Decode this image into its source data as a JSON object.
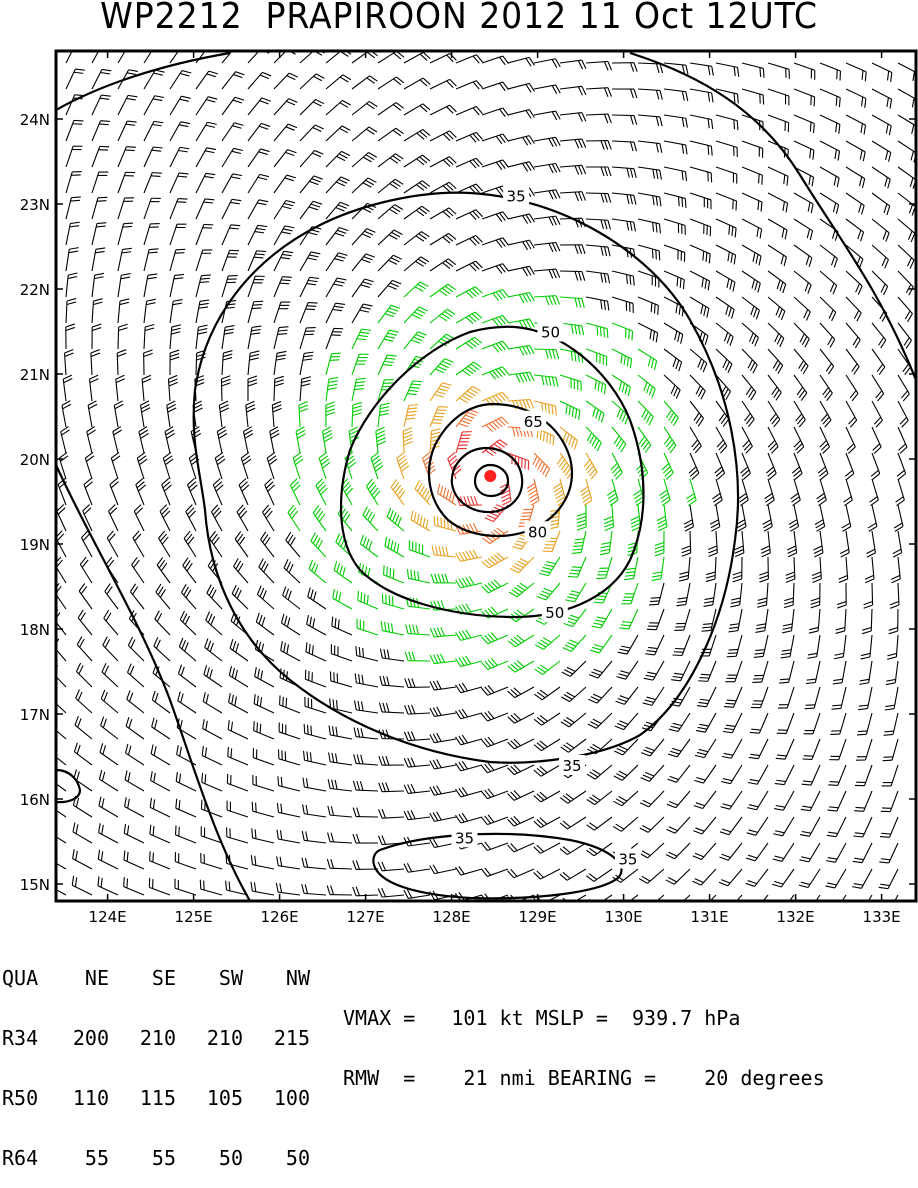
{
  "title": "WP2212  PRAPIROON 2012 11 Oct 12UTC",
  "colors": {
    "frame": "#000000",
    "barb_weak": "#000000",
    "barb_34": "#00cc00",
    "barb_50": "#e8a020",
    "barb_64": "#f07030",
    "barb_80": "#e83030",
    "center": "#ff2020",
    "contour": "#000000"
  },
  "chart_data": {
    "type": "contour",
    "xlabel": "",
    "ylabel": "",
    "xlim": [
      123.4,
      133.4
    ],
    "ylim": [
      14.8,
      24.8
    ],
    "x_ticks": [
      "124E",
      "125E",
      "126E",
      "127E",
      "128E",
      "129E",
      "130E",
      "131E",
      "132E",
      "133E"
    ],
    "y_ticks": [
      "15N",
      "16N",
      "17N",
      "18N",
      "19N",
      "20N",
      "21N",
      "22N",
      "23N",
      "24N"
    ],
    "center": {
      "lon": 128.45,
      "lat": 19.8
    },
    "contour_labels": [
      {
        "text": "35",
        "lon": 128.75,
        "lat": 23.1
      },
      {
        "text": "35",
        "lon": 129.4,
        "lat": 16.4
      },
      {
        "text": "35",
        "lon": 128.15,
        "lat": 15.55
      },
      {
        "text": "35",
        "lon": 130.05,
        "lat": 15.3
      },
      {
        "text": "50",
        "lon": 129.15,
        "lat": 21.5
      },
      {
        "text": "50",
        "lon": 129.2,
        "lat": 18.2
      },
      {
        "text": "65",
        "lon": 128.95,
        "lat": 20.45
      },
      {
        "text": "80",
        "lon": 129.0,
        "lat": 19.15
      }
    ],
    "vortex_levels": [
      35,
      50,
      65,
      80
    ],
    "wind_radii": {
      "quadrants": [
        "NE",
        "SE",
        "SW",
        "NW"
      ],
      "R34": [
        200,
        210,
        210,
        215
      ],
      "R50": [
        110,
        115,
        105,
        100
      ],
      "R64": [
        55,
        55,
        50,
        50
      ]
    }
  },
  "table": {
    "header": [
      "QUA",
      "NE",
      "SE",
      "SW",
      "NW"
    ],
    "rows": [
      [
        "R34",
        "200",
        "210",
        "210",
        "215"
      ],
      [
        "R50",
        "110",
        "115",
        "105",
        "100"
      ],
      [
        "R64",
        "55",
        "55",
        "50",
        "50"
      ]
    ]
  },
  "summary": {
    "line1": "VMAX =   101 kt MSLP =  939.7 hPa",
    "line2": "RMW  =    21 nmi BEARING =    20 degrees"
  }
}
